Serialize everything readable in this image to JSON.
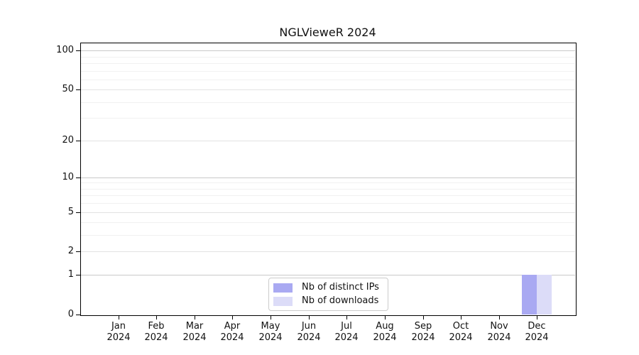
{
  "chart_data": {
    "type": "bar",
    "title": "NGLVieweR 2024",
    "categories": [
      "Jan",
      "Feb",
      "Mar",
      "Apr",
      "May",
      "Jun",
      "Jul",
      "Aug",
      "Sep",
      "Oct",
      "Nov",
      "Dec"
    ],
    "category_year": "2024",
    "series": [
      {
        "name": "Nb of distinct IPs",
        "color": "#a9a9f2",
        "values": [
          0,
          0,
          0,
          0,
          0,
          0,
          0,
          0,
          0,
          0,
          0,
          1
        ]
      },
      {
        "name": "Nb of downloads",
        "color": "#dcdcf8",
        "values": [
          0,
          0,
          0,
          0,
          0,
          0,
          0,
          0,
          0,
          0,
          0,
          1
        ]
      }
    ],
    "yscale": "log1p",
    "ylim": [
      0,
      115
    ],
    "yticks": [
      0,
      1,
      2,
      5,
      10,
      20,
      50,
      100
    ],
    "minor_gridlines": [
      3,
      4,
      6,
      7,
      8,
      9,
      30,
      40,
      60,
      70,
      80,
      90
    ],
    "grid": true,
    "legend_position": "lower center"
  },
  "colors": {
    "background": "#ffffff",
    "axis": "#000000",
    "text": "#111111",
    "grid_major": "#c9c9c9",
    "grid_mid": "#e2e2e2",
    "grid_minor": "#f1f1f1",
    "legend_border": "#cccccc"
  }
}
